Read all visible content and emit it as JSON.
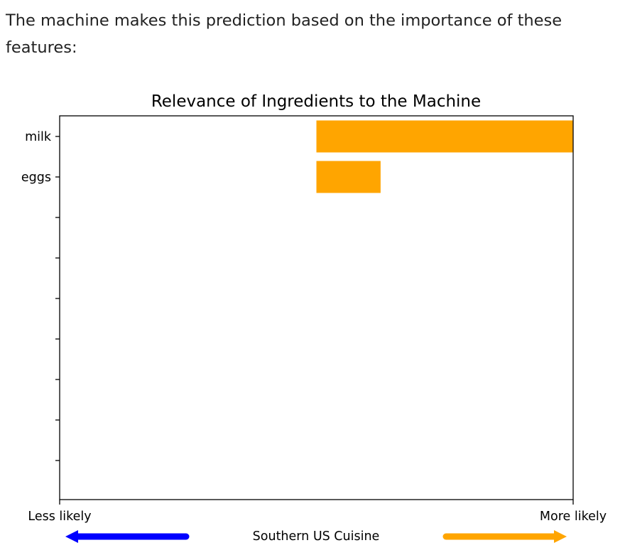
{
  "intro_text": "The machine makes this prediction based on the importance of these features:",
  "colors": {
    "positive": "#ffa500",
    "negative": "#0000ff",
    "axis": "#000000"
  },
  "chart_data": {
    "type": "bar",
    "orientation": "horizontal",
    "title": "Relevance of Ingredients to the Machine",
    "categories": [
      "milk",
      "eggs"
    ],
    "values": [
      1.0,
      0.25
    ],
    "empty_ticks": 7,
    "xlim": [
      -1,
      1
    ],
    "x_left_label": "Less likely",
    "x_right_label": "More likely",
    "xlabel": "Southern US Cuisine",
    "grid": false,
    "legend": "none"
  }
}
